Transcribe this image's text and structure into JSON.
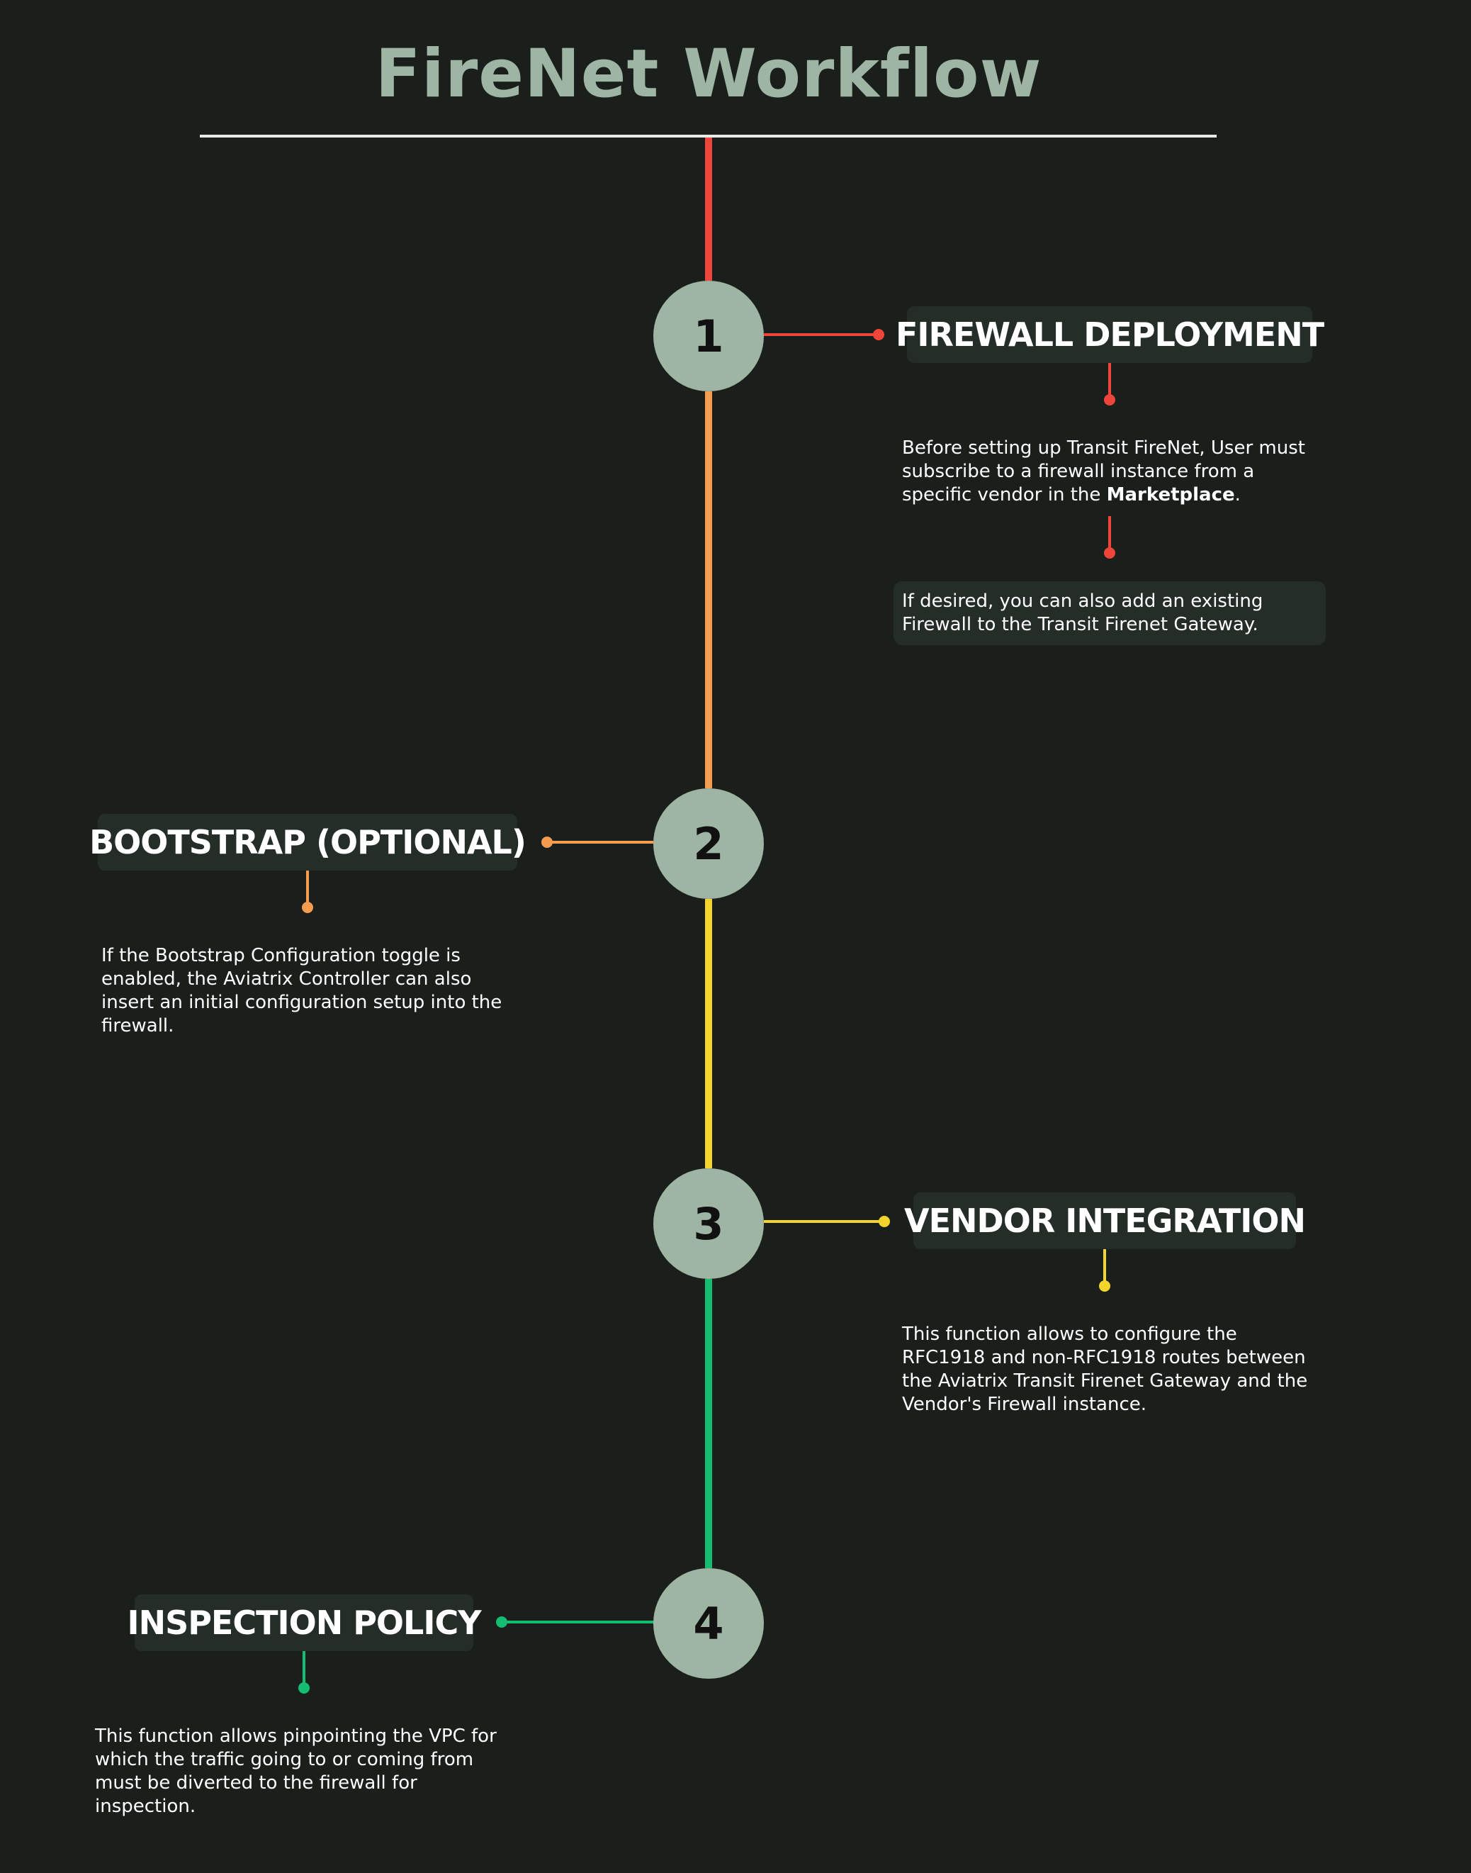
{
  "title": "FireNet Workflow",
  "colors": {
    "background": "#1a1f1c",
    "title": "#9eb5a4",
    "circle": "#9eb5a4",
    "step1": "#f0453a",
    "step2": "#f59c4e",
    "step3": "#f4d52b",
    "step4": "#15bc72"
  },
  "steps": [
    {
      "number": "1",
      "title": "FIREWALL DEPLOYMENT",
      "description_pre": "Before setting up Transit FireNet, User must subscribe to a firewall instance from a specific vendor in the ",
      "description_bold": "Marketplace",
      "description_post": ".",
      "note": "If desired, you can also add an existing Firewall to the Transit Firenet Gateway."
    },
    {
      "number": "2",
      "title": "BOOTSTRAP (OPTIONAL)",
      "description": "If the Bootstrap Configuration toggle is enabled, the Aviatrix Controller can also insert an initial configuration setup into the firewall."
    },
    {
      "number": "3",
      "title": "VENDOR INTEGRATION",
      "description": "This function allows to configure the RFC1918 and non-RFC1918 routes between the Aviatrix Transit Firenet Gateway and the Vendor's Firewall instance."
    },
    {
      "number": "4",
      "title": "INSPECTION POLICY",
      "description": "This function allows pinpointing the VPC for which the traffic going to or coming from must be diverted to the firewall for inspection."
    }
  ]
}
